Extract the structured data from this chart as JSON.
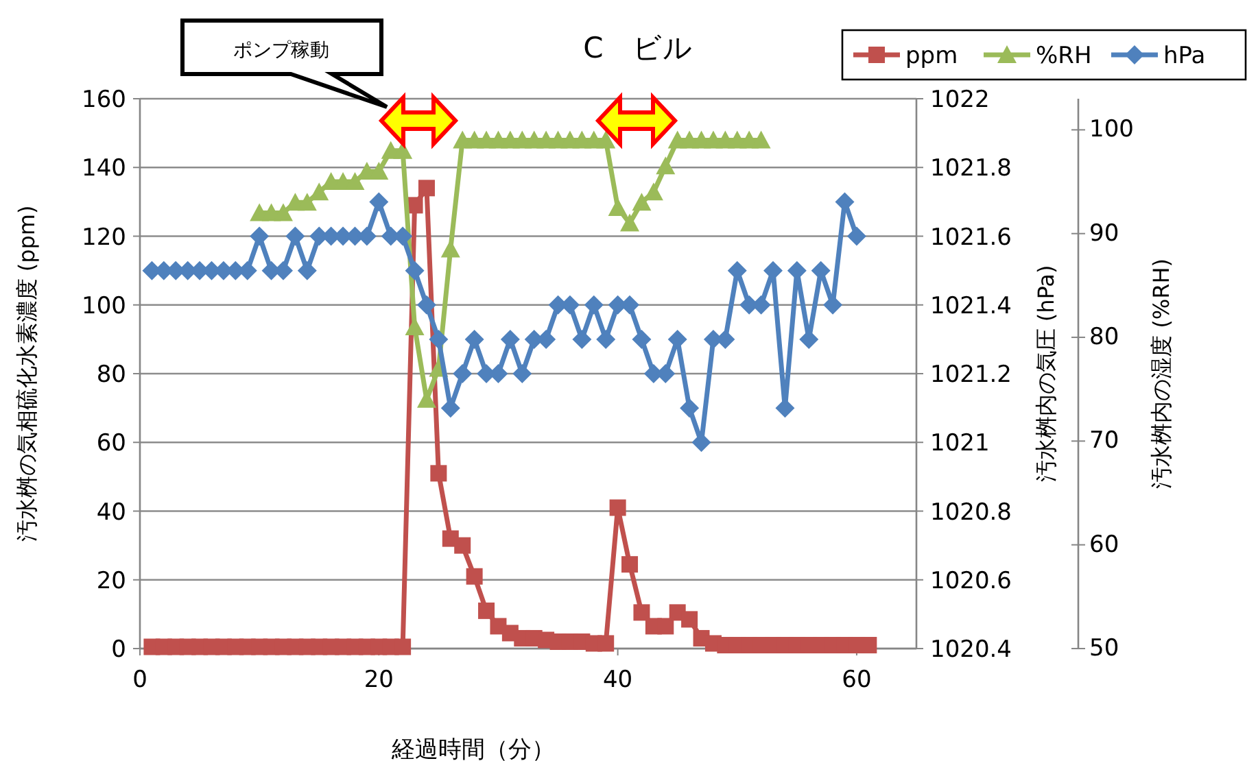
{
  "chart_data": {
    "type": "line",
    "title": "C　ビル",
    "xlabel": "経過時間（分）",
    "ylabel": "汚水桝の気相硫化水素濃度 (ppm)",
    "y2label": "汚水桝内の気圧 (hPa)",
    "y3label": "汚水桝内の湿度 (%RH)",
    "xlim": [
      0,
      65
    ],
    "xticks": [
      0,
      20,
      40,
      60
    ],
    "ylim": [
      0,
      160
    ],
    "yticks": [
      0,
      20,
      40,
      60,
      80,
      100,
      120,
      140,
      160
    ],
    "y2lim": [
      1020.4,
      1022
    ],
    "y2ticks": [
      1020.4,
      1020.6,
      1020.8,
      1021,
      1021.2,
      1021.4,
      1021.6,
      1021.8,
      1022
    ],
    "y3lim": [
      50,
      103
    ],
    "y3ticks": [
      50,
      60,
      70,
      80,
      90,
      100
    ],
    "grid": "y",
    "legend": "top right",
    "line_style": "solid",
    "annotations": [
      "ポンプ稼動"
    ],
    "series": [
      {
        "name": "ppm",
        "color": "#c0504d",
        "marker": "square",
        "x": [
          1,
          2,
          3,
          4,
          5,
          6,
          7,
          8,
          9,
          10,
          11,
          12,
          13,
          14,
          15,
          16,
          17,
          18,
          19,
          20,
          21,
          22,
          23,
          24,
          25,
          26,
          27,
          28,
          29,
          30,
          31,
          32,
          33,
          34,
          35,
          36,
          37,
          38,
          39,
          40,
          41,
          42,
          43,
          44,
          45,
          46,
          47,
          48,
          49,
          50,
          51,
          52,
          53,
          54,
          55,
          56,
          57,
          58,
          59,
          60,
          61
        ],
        "values": [
          0.5,
          0.5,
          0.5,
          0.5,
          0.5,
          0.5,
          0.5,
          0.5,
          0.5,
          0.5,
          0.5,
          0.5,
          0.5,
          0.5,
          0.5,
          0.5,
          0.5,
          0.5,
          0.5,
          0.5,
          0.5,
          0.5,
          129,
          134,
          51,
          32,
          30,
          21,
          11,
          6.5,
          4.5,
          3,
          3,
          2.5,
          2,
          2,
          2,
          1.5,
          1.5,
          41,
          24.5,
          10.5,
          6.5,
          6.5,
          10.5,
          8.5,
          3,
          1.5,
          1,
          1,
          1,
          1,
          1,
          1,
          1,
          1,
          1,
          1,
          1,
          1,
          1
        ]
      },
      {
        "name": "%RH",
        "color": "#9bbb59",
        "marker": "triangle",
        "axis": "y3",
        "x": [
          10,
          11,
          12,
          13,
          14,
          15,
          16,
          17,
          18,
          19,
          20,
          21,
          22,
          23,
          24,
          25,
          26,
          27,
          28,
          29,
          30,
          31,
          32,
          33,
          34,
          35,
          36,
          37,
          38,
          39,
          40,
          41,
          42,
          43,
          44,
          45,
          46,
          47,
          48,
          49,
          50,
          51,
          52
        ],
        "values": [
          92,
          92,
          92,
          93,
          93,
          94,
          95,
          95,
          95,
          96,
          96,
          98,
          98,
          81,
          74,
          77,
          88.5,
          99,
          99,
          99,
          99,
          99,
          99,
          99,
          99,
          99,
          99,
          99,
          99,
          99,
          92.5,
          91,
          93,
          94,
          96.5,
          99,
          99,
          99,
          99,
          99,
          99,
          99,
          99
        ]
      },
      {
        "name": "hPa",
        "color": "#4f81bd",
        "marker": "diamond",
        "axis": "y2",
        "x": [
          1,
          2,
          3,
          4,
          5,
          6,
          7,
          8,
          9,
          10,
          11,
          12,
          13,
          14,
          15,
          16,
          17,
          18,
          19,
          20,
          21,
          22,
          23,
          24,
          25,
          26,
          27,
          28,
          29,
          30,
          31,
          32,
          33,
          34,
          35,
          36,
          37,
          38,
          39,
          40,
          41,
          42,
          43,
          44,
          45,
          46,
          47,
          48,
          49,
          50,
          51,
          52,
          53,
          54,
          55,
          56,
          57,
          58,
          59,
          60
        ],
        "values": [
          1021.5,
          1021.5,
          1021.5,
          1021.5,
          1021.5,
          1021.5,
          1021.5,
          1021.5,
          1021.5,
          1021.6,
          1021.5,
          1021.5,
          1021.6,
          1021.5,
          1021.6,
          1021.6,
          1021.6,
          1021.6,
          1021.6,
          1021.7,
          1021.6,
          1021.6,
          1021.5,
          1021.4,
          1021.3,
          1021.1,
          1021.2,
          1021.3,
          1021.2,
          1021.2,
          1021.3,
          1021.2,
          1021.3,
          1021.3,
          1021.4,
          1021.4,
          1021.3,
          1021.4,
          1021.3,
          1021.4,
          1021.4,
          1021.3,
          1021.2,
          1021.2,
          1021.3,
          1021.1,
          1021,
          1021.3,
          1021.3,
          1021.5,
          1021.4,
          1021.4,
          1021.5,
          1021.1,
          1021.5,
          1021.3,
          1021.5,
          1021.4,
          1021.7,
          1021.6
        ]
      }
    ]
  }
}
